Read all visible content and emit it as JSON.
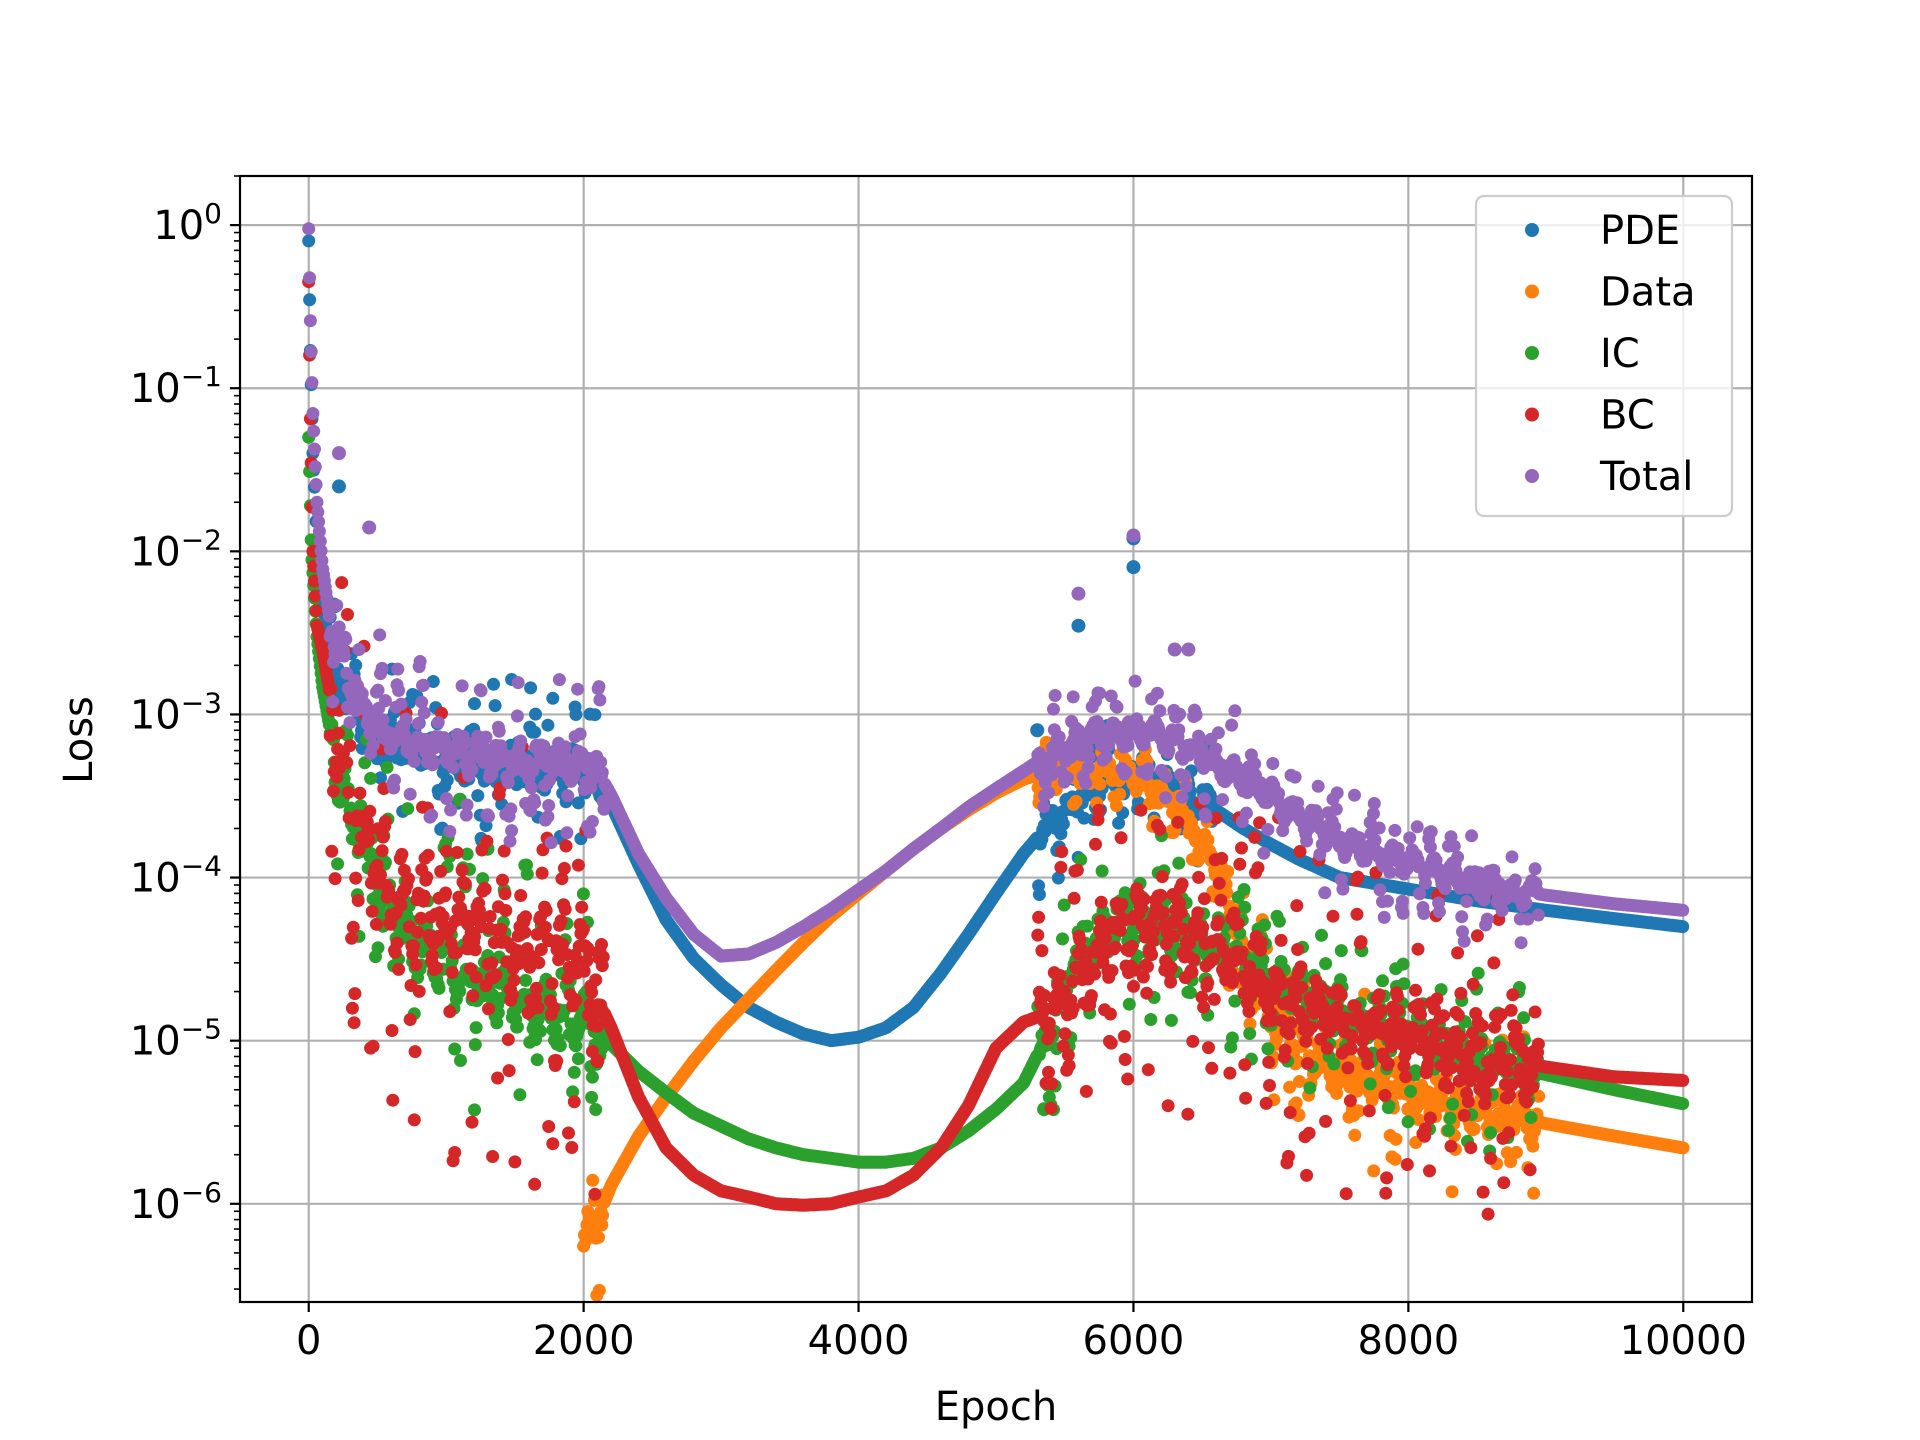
{
  "chart_data": {
    "type": "scatter",
    "title": "",
    "xlabel": "Epoch",
    "ylabel": "Loss",
    "xlim": [
      -500,
      10500
    ],
    "ylim": [
      2.5e-07,
      2
    ],
    "yscale": "log",
    "grid": true,
    "legend_position": "top-right",
    "x_ticks": [
      {
        "value": 0,
        "label": "0"
      },
      {
        "value": 2000,
        "label": "2000"
      },
      {
        "value": 4000,
        "label": "4000"
      },
      {
        "value": 6000,
        "label": "6000"
      },
      {
        "value": 8000,
        "label": "8000"
      },
      {
        "value": 10000,
        "label": "10000"
      }
    ],
    "y_ticks": [
      {
        "value": 1,
        "base": "10",
        "exp": "0"
      },
      {
        "value": 0.1,
        "base": "10",
        "exp": "−1"
      },
      {
        "value": 0.01,
        "base": "10",
        "exp": "−2"
      },
      {
        "value": 0.001,
        "base": "10",
        "exp": "−3"
      },
      {
        "value": 0.0001,
        "base": "10",
        "exp": "−4"
      },
      {
        "value": 1e-05,
        "base": "10",
        "exp": "−5"
      },
      {
        "value": 1e-06,
        "base": "10",
        "exp": "−6"
      }
    ],
    "series": [
      {
        "name": "PDE",
        "color": "#1f77b4",
        "points": [
          [
            0,
            0.8
          ],
          [
            10,
            0.2
          ],
          [
            30,
            0.04
          ],
          [
            60,
            0.012
          ],
          [
            100,
            0.005
          ],
          [
            150,
            0.0025
          ],
          [
            200,
            0.0017
          ],
          [
            300,
            0.0011
          ],
          [
            400,
            0.0009
          ],
          [
            600,
            0.00072
          ],
          [
            800,
            0.00062
          ],
          [
            1000,
            0.00055
          ],
          [
            1200,
            0.00052
          ],
          [
            1400,
            0.0005
          ],
          [
            1600,
            0.00048
          ],
          [
            1800,
            0.00047
          ],
          [
            2000,
            0.00046
          ],
          [
            2100,
            0.0004
          ],
          [
            2200,
            0.00028
          ],
          [
            2400,
            0.00012
          ],
          [
            2600,
            5.5e-05
          ],
          [
            2800,
            3.2e-05
          ],
          [
            3000,
            2.2e-05
          ],
          [
            3200,
            1.6e-05
          ],
          [
            3400,
            1.3e-05
          ],
          [
            3600,
            1.1e-05
          ],
          [
            3800,
            1e-05
          ],
          [
            4000,
            1.05e-05
          ],
          [
            4200,
            1.2e-05
          ],
          [
            4400,
            1.6e-05
          ],
          [
            4600,
            2.6e-05
          ],
          [
            4800,
            4.5e-05
          ],
          [
            5000,
            8e-05
          ],
          [
            5200,
            0.00014
          ],
          [
            5400,
            0.00022
          ],
          [
            5600,
            0.00032
          ],
          [
            5800,
            0.0004
          ],
          [
            6000,
            0.00042
          ],
          [
            6200,
            0.00038
          ],
          [
            6400,
            0.00032
          ],
          [
            6600,
            0.00026
          ],
          [
            6800,
            0.0002
          ],
          [
            7000,
            0.00016
          ],
          [
            7200,
            0.00013
          ],
          [
            7500,
            0.0001
          ],
          [
            8000,
            8.5e-05
          ],
          [
            8500,
            7.2e-05
          ],
          [
            9000,
            6.3e-05
          ],
          [
            9500,
            5.6e-05
          ],
          [
            10000,
            5e-05
          ]
        ],
        "spikes": [
          [
            220,
            0.025
          ],
          [
            5300,
            0.0008
          ],
          [
            5600,
            0.0035
          ],
          [
            6000,
            0.008
          ],
          [
            6000,
            0.012
          ]
        ]
      },
      {
        "name": "Data",
        "color": "#ff7f0e",
        "points": [
          [
            2000,
            5e-07
          ],
          [
            2100,
            8e-07
          ],
          [
            2200,
            1.3e-06
          ],
          [
            2400,
            2.6e-06
          ],
          [
            2600,
            4.5e-06
          ],
          [
            2800,
            7.5e-06
          ],
          [
            3000,
            1.2e-05
          ],
          [
            3200,
            1.8e-05
          ],
          [
            3400,
            2.7e-05
          ],
          [
            3600,
            4e-05
          ],
          [
            3800,
            5.8e-05
          ],
          [
            4000,
            8e-05
          ],
          [
            4200,
            0.00011
          ],
          [
            4400,
            0.00015
          ],
          [
            4600,
            0.0002
          ],
          [
            4800,
            0.00026
          ],
          [
            5000,
            0.00033
          ],
          [
            5200,
            0.0004
          ],
          [
            5400,
            0.00045
          ],
          [
            5600,
            0.00047
          ],
          [
            5800,
            0.00045
          ],
          [
            6000,
            0.0004
          ],
          [
            6200,
            0.00032
          ],
          [
            6400,
            0.00022
          ],
          [
            6600,
            0.00012
          ],
          [
            6800,
            3e-05
          ],
          [
            7000,
            1.4e-05
          ],
          [
            7200,
            9e-06
          ],
          [
            7500,
            6.5e-06
          ],
          [
            8000,
            4.8e-06
          ],
          [
            8500,
            3.8e-06
          ],
          [
            9000,
            3.1e-06
          ],
          [
            9500,
            2.6e-06
          ],
          [
            10000,
            2.2e-06
          ]
        ],
        "spikes": [
          [
            6700,
            2.2e-05
          ],
          [
            7000,
            1.7e-05
          ],
          [
            7200,
            3.5e-06
          ],
          [
            7400,
            1.2e-05
          ],
          [
            7600,
            3.5e-06
          ],
          [
            7800,
            9.5e-06
          ],
          [
            8000,
            3.8e-06
          ],
          [
            8300,
            8.5e-06
          ],
          [
            8600,
            4.2e-06
          ],
          [
            8900,
            7e-06
          ]
        ]
      },
      {
        "name": "IC",
        "color": "#2ca02c",
        "points": [
          [
            0,
            0.05
          ],
          [
            20,
            0.01
          ],
          [
            60,
            0.003
          ],
          [
            100,
            0.0015
          ],
          [
            200,
            0.0005
          ],
          [
            300,
            0.00025
          ],
          [
            400,
            0.00013
          ],
          [
            600,
            6e-05
          ],
          [
            800,
            3.8e-05
          ],
          [
            1000,
            3e-05
          ],
          [
            1200,
            2.4e-05
          ],
          [
            1400,
            2e-05
          ],
          [
            1600,
            1.7e-05
          ],
          [
            1800,
            1.5e-05
          ],
          [
            2000,
            1.3e-05
          ],
          [
            2200,
            9.5e-06
          ],
          [
            2400,
            6.5e-06
          ],
          [
            2600,
            4.8e-06
          ],
          [
            2800,
            3.6e-06
          ],
          [
            3000,
            3e-06
          ],
          [
            3200,
            2.5e-06
          ],
          [
            3400,
            2.2e-06
          ],
          [
            3600,
            2e-06
          ],
          [
            3800,
            1.9e-06
          ],
          [
            4000,
            1.8e-06
          ],
          [
            4200,
            1.8e-06
          ],
          [
            4400,
            1.9e-06
          ],
          [
            4600,
            2.2e-06
          ],
          [
            4800,
            2.8e-06
          ],
          [
            5000,
            3.8e-06
          ],
          [
            5200,
            5.5e-06
          ],
          [
            5400,
            1.2e-05
          ],
          [
            5600,
            3.5e-05
          ],
          [
            5800,
            5e-05
          ],
          [
            6000,
            5e-05
          ],
          [
            6200,
            4.8e-05
          ],
          [
            6400,
            4.2e-05
          ],
          [
            6600,
            3.6e-05
          ],
          [
            6800,
            3e-05
          ],
          [
            7000,
            2.4e-05
          ],
          [
            7500,
            1.6e-05
          ],
          [
            8000,
            1.1e-05
          ],
          [
            8500,
            7.8e-06
          ],
          [
            9000,
            6.2e-06
          ],
          [
            9500,
            5e-06
          ],
          [
            10000,
            4.1e-06
          ]
        ],
        "spikes": [
          [
            5350,
            3.8e-06
          ],
          [
            1100,
            0.0003
          ],
          [
            1300,
            0.00015
          ]
        ]
      },
      {
        "name": "BC",
        "color": "#d62728",
        "points": [
          [
            0,
            0.45
          ],
          [
            10,
            0.08
          ],
          [
            30,
            0.01
          ],
          [
            60,
            0.0035
          ],
          [
            100,
            0.0025
          ],
          [
            200,
            0.0008
          ],
          [
            300,
            0.0003
          ],
          [
            400,
            0.00016
          ],
          [
            600,
            8.5e-05
          ],
          [
            800,
            6e-05
          ],
          [
            1000,
            5e-05
          ],
          [
            1200,
            4.5e-05
          ],
          [
            1400,
            4e-05
          ],
          [
            1600,
            3.6e-05
          ],
          [
            1800,
            3.2e-05
          ],
          [
            2000,
            2.8e-05
          ],
          [
            2200,
            1.2e-05
          ],
          [
            2400,
            4.5e-06
          ],
          [
            2600,
            2.2e-06
          ],
          [
            2800,
            1.5e-06
          ],
          [
            3000,
            1.2e-06
          ],
          [
            3200,
            1.1e-06
          ],
          [
            3400,
            1e-06
          ],
          [
            3600,
            9.8e-07
          ],
          [
            3800,
            1e-06
          ],
          [
            4000,
            1.1e-06
          ],
          [
            4200,
            1.2e-06
          ],
          [
            4400,
            1.5e-06
          ],
          [
            4600,
            2.2e-06
          ],
          [
            4800,
            4e-06
          ],
          [
            5000,
            9e-06
          ],
          [
            5200,
            1.3e-05
          ],
          [
            5400,
            1.5e-05
          ],
          [
            5600,
            2.5e-05
          ],
          [
            5800,
            4e-05
          ],
          [
            6000,
            5e-05
          ],
          [
            6200,
            4.8e-05
          ],
          [
            6400,
            4e-05
          ],
          [
            6600,
            3.4e-05
          ],
          [
            6800,
            2.8e-05
          ],
          [
            7000,
            2.2e-05
          ],
          [
            7500,
            1.4e-05
          ],
          [
            8000,
            1e-05
          ],
          [
            8500,
            8.2e-06
          ],
          [
            9000,
            6.9e-06
          ],
          [
            9500,
            6e-06
          ],
          [
            10000,
            5.7e-06
          ]
        ],
        "spikes": [
          [
            1800,
            7.5e-06
          ],
          [
            2100,
            7.5e-06
          ]
        ]
      },
      {
        "name": "Total",
        "color": "#9467bd",
        "points": [
          [
            0,
            0.95
          ],
          [
            10,
            0.3
          ],
          [
            30,
            0.07
          ],
          [
            60,
            0.02
          ],
          [
            100,
            0.008
          ],
          [
            150,
            0.004
          ],
          [
            200,
            0.0025
          ],
          [
            300,
            0.0015
          ],
          [
            400,
            0.0011
          ],
          [
            600,
            0.00078
          ],
          [
            800,
            0.00066
          ],
          [
            1000,
            0.0006
          ],
          [
            1200,
            0.00056
          ],
          [
            1400,
            0.00053
          ],
          [
            1600,
            0.00051
          ],
          [
            1800,
            0.0005
          ],
          [
            2000,
            0.00049
          ],
          [
            2100,
            0.00045
          ],
          [
            2200,
            0.00032
          ],
          [
            2400,
            0.00014
          ],
          [
            2600,
            7.5e-05
          ],
          [
            2800,
            4.5e-05
          ],
          [
            3000,
            3.3e-05
          ],
          [
            3200,
            3.4e-05
          ],
          [
            3400,
            4e-05
          ],
          [
            3600,
            5e-05
          ],
          [
            3800,
            6.4e-05
          ],
          [
            4000,
            8.4e-05
          ],
          [
            4200,
            0.00011
          ],
          [
            4400,
            0.00015
          ],
          [
            4600,
            0.0002
          ],
          [
            4800,
            0.00027
          ],
          [
            5000,
            0.00035
          ],
          [
            5200,
            0.00045
          ],
          [
            5400,
            0.00058
          ],
          [
            5600,
            0.0007
          ],
          [
            5800,
            0.00077
          ],
          [
            6000,
            0.00078
          ],
          [
            6200,
            0.00072
          ],
          [
            6400,
            0.00062
          ],
          [
            6600,
            0.0005
          ],
          [
            6800,
            0.0004
          ],
          [
            7000,
            0.00031
          ],
          [
            7200,
            0.00024
          ],
          [
            7500,
            0.00017
          ],
          [
            8000,
            0.00012
          ],
          [
            8500,
            9.2e-05
          ],
          [
            9000,
            7.8e-05
          ],
          [
            9500,
            6.9e-05
          ],
          [
            10000,
            6.3e-05
          ]
        ],
        "spikes": [
          [
            220,
            0.04
          ],
          [
            440,
            0.014
          ],
          [
            5600,
            0.0055
          ],
          [
            6000,
            0.0125
          ],
          [
            6400,
            0.0025
          ],
          [
            6300,
            0.0025
          ]
        ]
      }
    ]
  }
}
